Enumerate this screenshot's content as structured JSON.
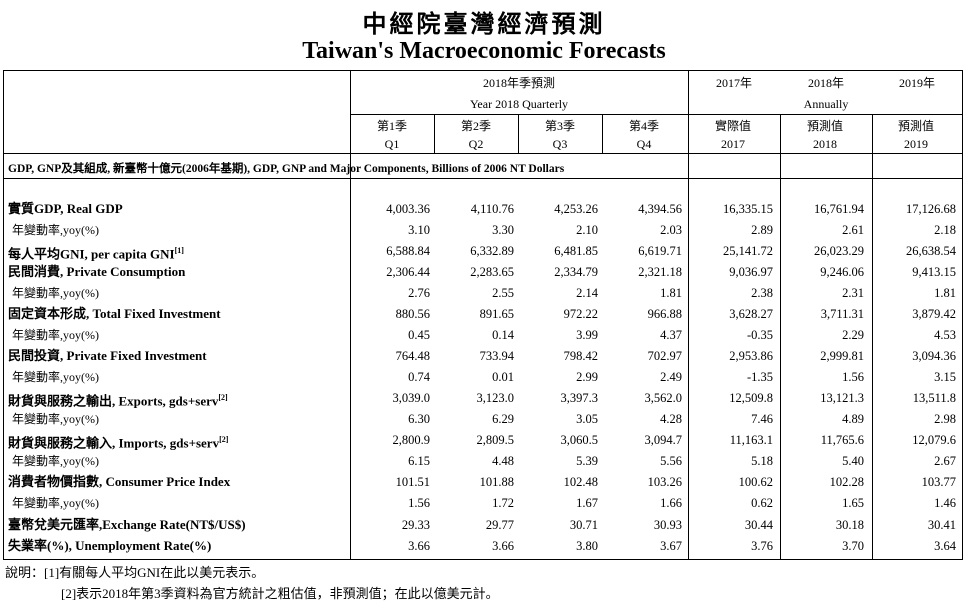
{
  "title_zh": "中經院臺灣經濟預測",
  "title_en": "Taiwan's Macroeconomic Forecasts",
  "header": {
    "quarterly_zh": "2018年季預測",
    "quarterly_en": "Year 2018 Quarterly",
    "y2017": "2017年",
    "y2018": "2018年",
    "y2019": "2019年",
    "annually": "Annually",
    "cols": [
      {
        "zh": "第1季",
        "en": "Q1"
      },
      {
        "zh": "第2季",
        "en": "Q2"
      },
      {
        "zh": "第3季",
        "en": "Q3"
      },
      {
        "zh": "第4季",
        "en": "Q4"
      },
      {
        "zh": "實際值",
        "en": "2017"
      },
      {
        "zh": "預測值",
        "en": "2018"
      },
      {
        "zh": "預測值",
        "en": "2019"
      }
    ]
  },
  "section_label": "GDP, GNP及其組成, 新臺幣十億元(2006年基期), GDP, GNP and Major Components, Billions of 2006 NT Dollars",
  "rows": [
    {
      "label": "實質GDP, Real GDP",
      "sup": "",
      "bold": true,
      "values": [
        "4,003.36",
        "4,110.76",
        "4,253.26",
        "4,394.56",
        "16,335.15",
        "16,761.94",
        "17,126.68"
      ]
    },
    {
      "label": "年變動率,yoy(%)",
      "sup": "",
      "bold": false,
      "values": [
        "3.10",
        "3.30",
        "2.10",
        "2.03",
        "2.89",
        "2.61",
        "2.18"
      ]
    },
    {
      "label": "每人平均GNI, per capita GNI",
      "sup": "[1]",
      "bold": true,
      "values": [
        "6,588.84",
        "6,332.89",
        "6,481.85",
        "6,619.71",
        "25,141.72",
        "26,023.29",
        "26,638.54"
      ]
    },
    {
      "label": "民間消費, Private Consumption",
      "sup": "",
      "bold": true,
      "values": [
        "2,306.44",
        "2,283.65",
        "2,334.79",
        "2,321.18",
        "9,036.97",
        "9,246.06",
        "9,413.15"
      ]
    },
    {
      "label": "年變動率,yoy(%)",
      "sup": "",
      "bold": false,
      "values": [
        "2.76",
        "2.55",
        "2.14",
        "1.81",
        "2.38",
        "2.31",
        "1.81"
      ]
    },
    {
      "label": "固定資本形成, Total Fixed Investment",
      "sup": "",
      "bold": true,
      "values": [
        "880.56",
        "891.65",
        "972.22",
        "966.88",
        "3,628.27",
        "3,711.31",
        "3,879.42"
      ]
    },
    {
      "label": "年變動率,yoy(%)",
      "sup": "",
      "bold": false,
      "values": [
        "0.45",
        "0.14",
        "3.99",
        "4.37",
        "-0.35",
        "2.29",
        "4.53"
      ]
    },
    {
      "label": "民間投資, Private Fixed Investment",
      "sup": "",
      "bold": true,
      "values": [
        "764.48",
        "733.94",
        "798.42",
        "702.97",
        "2,953.86",
        "2,999.81",
        "3,094.36"
      ]
    },
    {
      "label": "年變動率,yoy(%)",
      "sup": "",
      "bold": false,
      "values": [
        "0.74",
        "0.01",
        "2.99",
        "2.49",
        "-1.35",
        "1.56",
        "3.15"
      ]
    },
    {
      "label": "財貨與服務之輸出, Exports, gds+serv",
      "sup": "[2]",
      "bold": true,
      "values": [
        "3,039.0",
        "3,123.0",
        "3,397.3",
        "3,562.0",
        "12,509.8",
        "13,121.3",
        "13,511.8"
      ]
    },
    {
      "label": "年變動率,yoy(%)",
      "sup": "",
      "bold": false,
      "values": [
        "6.30",
        "6.29",
        "3.05",
        "4.28",
        "7.46",
        "4.89",
        "2.98"
      ]
    },
    {
      "label": "財貨與服務之輸入, Imports, gds+serv",
      "sup": "[2]",
      "bold": true,
      "values": [
        "2,800.9",
        "2,809.5",
        "3,060.5",
        "3,094.7",
        "11,163.1",
        "11,765.6",
        "12,079.6"
      ]
    },
    {
      "label": "年變動率,yoy(%)",
      "sup": "",
      "bold": false,
      "values": [
        "6.15",
        "4.48",
        "5.39",
        "5.56",
        "5.18",
        "5.40",
        "2.67"
      ]
    },
    {
      "label": "消費者物價指數, Consumer Price Index",
      "sup": "",
      "bold": true,
      "values": [
        "101.51",
        "101.88",
        "102.48",
        "103.26",
        "100.62",
        "102.28",
        "103.77"
      ]
    },
    {
      "label": "年變動率,yoy(%)",
      "sup": "",
      "bold": false,
      "values": [
        "1.56",
        "1.72",
        "1.67",
        "1.66",
        "0.62",
        "1.65",
        "1.46"
      ]
    },
    {
      "label": "臺幣兌美元匯率,Exchange Rate(NT$/US$)",
      "sup": "",
      "bold": true,
      "values": [
        "29.33",
        "29.77",
        "30.71",
        "30.93",
        "30.44",
        "30.18",
        "30.41"
      ]
    },
    {
      "label": "失業率(%), Unemployment Rate(%)",
      "sup": "",
      "bold": true,
      "values": [
        "3.66",
        "3.66",
        "3.80",
        "3.67",
        "3.76",
        "3.70",
        "3.64"
      ]
    }
  ],
  "notes": {
    "n1": "說明：[1]有關每人平均GNI在此以美元表示。",
    "n2": "[2]表示2018年第3季資料為官方統計之粗估值，非預測值；在此以億美元計。"
  }
}
